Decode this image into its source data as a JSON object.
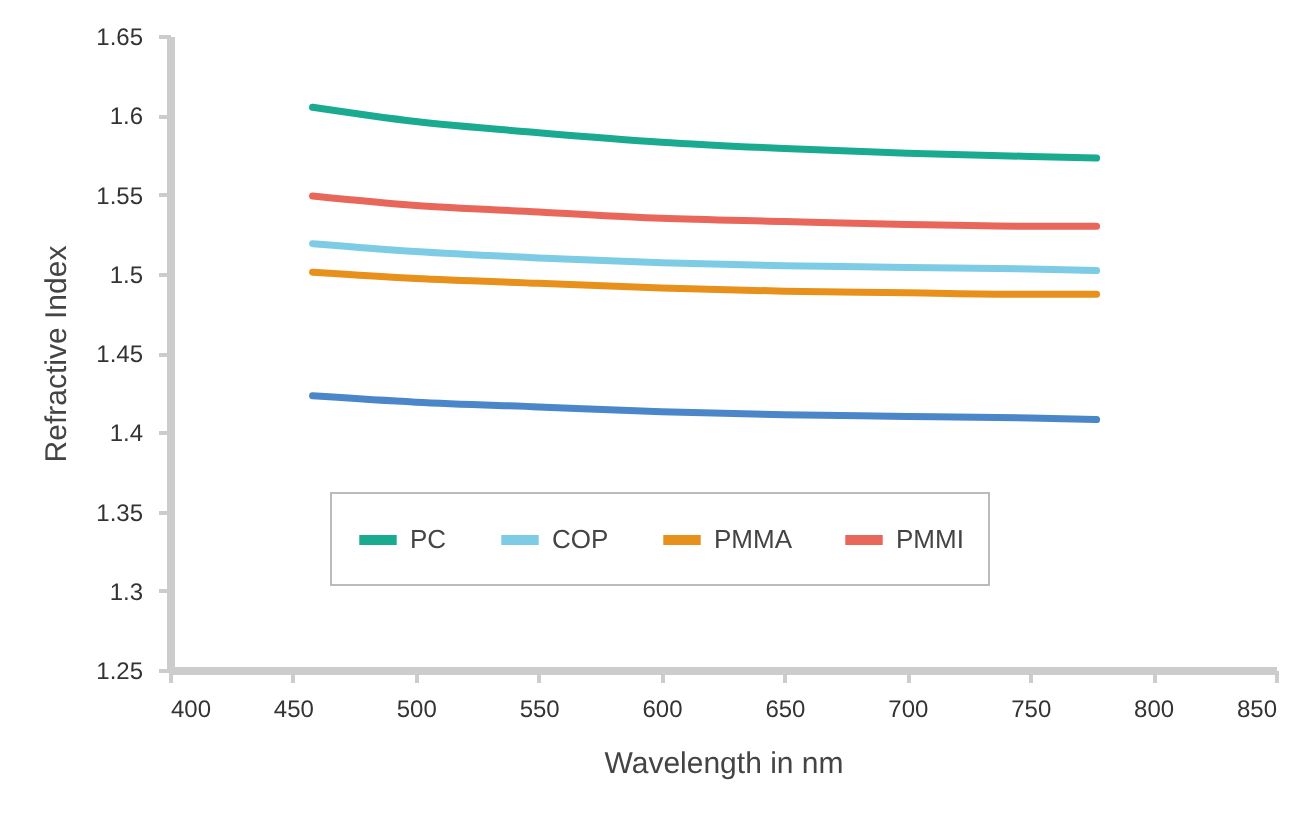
{
  "chart_data": {
    "type": "line",
    "xlabel": "Wavelength in nm",
    "ylabel": "Refractive Index",
    "x": [
      458,
      500,
      550,
      600,
      650,
      700,
      750,
      777
    ],
    "series": [
      {
        "color": "#4a86c8",
        "values": [
          1.423,
          1.419,
          1.416,
          1.413,
          1.411,
          1.41,
          1.409,
          1.408
        ]
      },
      {
        "name": "PC",
        "color": "#1aaa8f",
        "values": [
          1.605,
          1.596,
          1.589,
          1.583,
          1.579,
          1.576,
          1.574,
          1.573
        ]
      },
      {
        "name": "COP",
        "color": "#7ecbe6",
        "values": [
          1.519,
          1.514,
          1.51,
          1.507,
          1.505,
          1.504,
          1.503,
          1.502
        ]
      },
      {
        "name": "PMMA",
        "color": "#e8901c",
        "values": [
          1.501,
          1.497,
          1.494,
          1.491,
          1.489,
          1.488,
          1.487,
          1.487
        ]
      },
      {
        "name": "PMMI",
        "color": "#e8675a",
        "values": [
          1.549,
          1.543,
          1.539,
          1.535,
          1.533,
          1.531,
          1.53,
          1.53
        ]
      }
    ],
    "xlim": [
      400,
      850
    ],
    "xticks": [
      400,
      450,
      500,
      550,
      600,
      650,
      700,
      750,
      800,
      850
    ],
    "ylim": [
      1.25,
      1.65
    ],
    "yticks": [
      1.25,
      1.3,
      1.35,
      1.4,
      1.45,
      1.5,
      1.55,
      1.6,
      1.65
    ],
    "grid": false,
    "legend": "bottom",
    "marker": "none",
    "line_style": "solid"
  }
}
